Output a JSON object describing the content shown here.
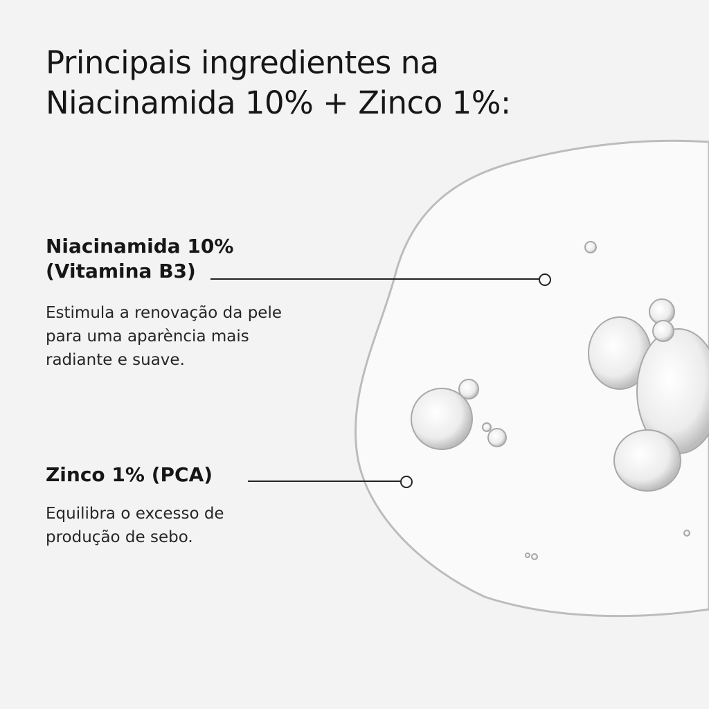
{
  "title": {
    "line1": "Principais ingredientes na",
    "line2": "Niacinamida 10% + Zinco 1%:"
  },
  "ingredients": [
    {
      "name_line1": "Niacinamida 10%",
      "name_line2": "(Vitamina B3)",
      "desc": [
        "Estimula a renovação da pele",
        "para uma aparència mais",
        "radiante e suave."
      ]
    },
    {
      "name_line1": "Zinco 1% (PCA)",
      "desc": [
        "Equilibra o excesso de",
        "produção de sebo."
      ]
    }
  ],
  "colors": {
    "background": "#f3f3f3",
    "text": "#161616",
    "line": "#222222"
  },
  "image": "serum-drop-texture"
}
